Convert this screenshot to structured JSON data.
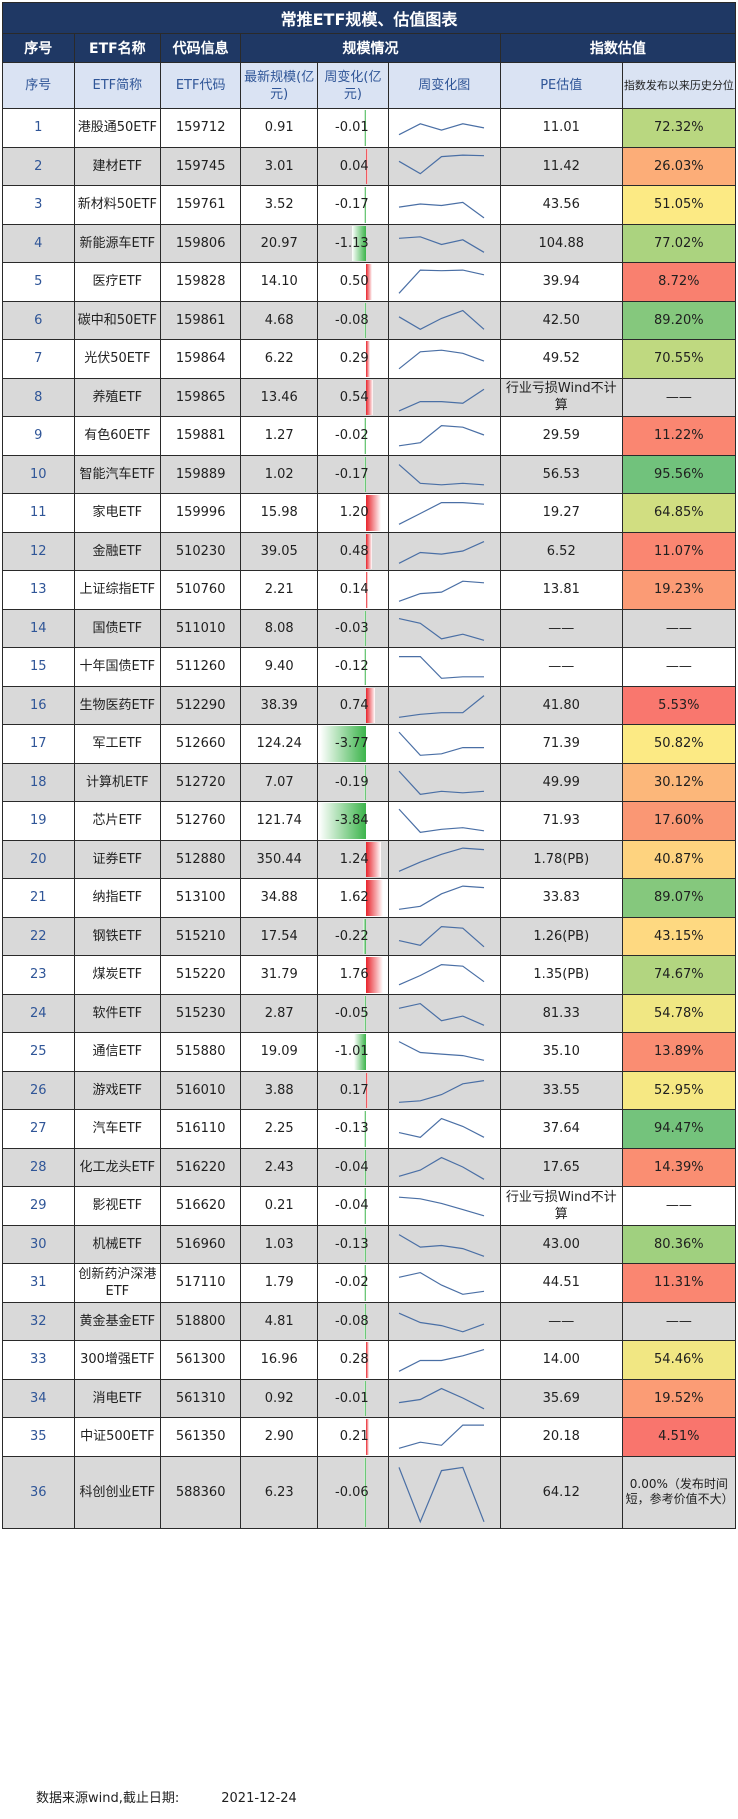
{
  "title": "常推ETF规模、估值图表",
  "group_headers": {
    "seq": "序号",
    "name": "ETF名称",
    "code": "代码信息",
    "scale": "规模情况",
    "valuation": "指数估值"
  },
  "column_headers": {
    "seq": "序号",
    "name": "ETF简称",
    "code": "ETF代码",
    "latest_scale": "最新规模(亿元)",
    "weekly_change": "周变化(亿元)",
    "weekly_chart": "周变化图",
    "pe": "PE估值",
    "percentile": "指数发布以来历史分位"
  },
  "colors": {
    "header_bg": "#1f3864",
    "subheader_bg": "#dae3f3",
    "row_alt_bg": "#d9d9d9",
    "bar_positive": "#e8242c",
    "bar_negative": "#3cb44b",
    "spark_line": "#4a6fa5"
  },
  "rows": [
    {
      "seq": "1",
      "name": "港股通50ETF",
      "code": "159712",
      "scale": "0.91",
      "change": "-0.01",
      "change_value": -0.01,
      "pe": "11.01",
      "pct": "72.32%",
      "pct_value": 72.32,
      "spark": [
        0.7,
        0.35,
        0.55,
        0.35,
        0.48
      ]
    },
    {
      "seq": "2",
      "name": "建材ETF",
      "code": "159745",
      "scale": "3.01",
      "change": "0.04",
      "change_value": 0.04,
      "pe": "11.42",
      "pct": "26.03%",
      "pct_value": 26.03,
      "spark": [
        0.3,
        0.7,
        0.15,
        0.1,
        0.12
      ]
    },
    {
      "seq": "3",
      "name": "新材料50ETF",
      "code": "159761",
      "scale": "3.52",
      "change": "-0.17",
      "change_value": -0.17,
      "pe": "43.56",
      "pct": "51.05%",
      "pct_value": 51.05,
      "spark": [
        0.55,
        0.45,
        0.5,
        0.4,
        0.9
      ]
    },
    {
      "seq": "4",
      "name": "新能源车ETF",
      "code": "159806",
      "scale": "20.97",
      "change": "-1.13",
      "change_value": -1.13,
      "pe": "104.88",
      "pct": "77.02%",
      "pct_value": 77.02,
      "spark": [
        0.3,
        0.25,
        0.5,
        0.35,
        0.75
      ]
    },
    {
      "seq": "5",
      "name": "医疗ETF",
      "code": "159828",
      "scale": "14.10",
      "change": "0.50",
      "change_value": 0.5,
      "pe": "39.94",
      "pct": "8.72%",
      "pct_value": 8.72,
      "spark": [
        0.85,
        0.1,
        0.12,
        0.1,
        0.25
      ]
    },
    {
      "seq": "6",
      "name": "碳中和50ETF",
      "code": "159861",
      "scale": "4.68",
      "change": "-0.08",
      "change_value": -0.08,
      "pe": "42.50",
      "pct": "89.20%",
      "pct_value": 89.2,
      "spark": [
        0.35,
        0.75,
        0.4,
        0.15,
        0.75
      ]
    },
    {
      "seq": "7",
      "name": "光伏50ETF",
      "code": "159864",
      "scale": "6.22",
      "change": "0.29",
      "change_value": 0.29,
      "pe": "49.52",
      "pct": "70.55%",
      "pct_value": 70.55,
      "spark": [
        0.8,
        0.25,
        0.2,
        0.3,
        0.55
      ]
    },
    {
      "seq": "8",
      "name": "养殖ETF",
      "code": "159865",
      "scale": "13.46",
      "change": "0.54",
      "change_value": 0.54,
      "pe": "行业亏损Wind不计算",
      "pct": "——",
      "pct_value": null,
      "spark": [
        0.9,
        0.6,
        0.6,
        0.65,
        0.2
      ]
    },
    {
      "seq": "9",
      "name": "有色60ETF",
      "code": "159881",
      "scale": "1.27",
      "change": "-0.02",
      "change_value": -0.02,
      "pe": "29.59",
      "pct": "11.22%",
      "pct_value": 11.22,
      "spark": [
        0.8,
        0.7,
        0.15,
        0.2,
        0.45
      ]
    },
    {
      "seq": "10",
      "name": "智能汽车ETF",
      "code": "159889",
      "scale": "1.02",
      "change": "-0.17",
      "change_value": -0.17,
      "pe": "56.53",
      "pct": "95.56%",
      "pct_value": 95.56,
      "spark": [
        0.15,
        0.75,
        0.8,
        0.75,
        0.8
      ]
    },
    {
      "seq": "11",
      "name": "家电ETF",
      "code": "159996",
      "scale": "15.98",
      "change": "1.20",
      "change_value": 1.2,
      "pe": "19.27",
      "pct": "64.85%",
      "pct_value": 64.85,
      "spark": [
        0.85,
        0.5,
        0.15,
        0.15,
        0.2
      ]
    },
    {
      "seq": "12",
      "name": "金融ETF",
      "code": "510230",
      "scale": "39.05",
      "change": "0.48",
      "change_value": 0.48,
      "pe": "6.52",
      "pct": "11.07%",
      "pct_value": 11.07,
      "spark": [
        0.85,
        0.5,
        0.55,
        0.45,
        0.15
      ]
    },
    {
      "seq": "13",
      "name": "上证综指ETF",
      "code": "510760",
      "scale": "2.21",
      "change": "0.14",
      "change_value": 0.14,
      "pe": "13.81",
      "pct": "19.23%",
      "pct_value": 19.23,
      "spark": [
        0.85,
        0.6,
        0.55,
        0.2,
        0.25
      ]
    },
    {
      "seq": "14",
      "name": "国债ETF",
      "code": "511010",
      "scale": "8.08",
      "change": "-0.03",
      "change_value": -0.03,
      "pe": "——",
      "pct": "——",
      "pct_value": null,
      "spark": [
        0.15,
        0.3,
        0.8,
        0.65,
        0.85
      ]
    },
    {
      "seq": "15",
      "name": "十年国债ETF",
      "code": "511260",
      "scale": "9.40",
      "change": "-0.12",
      "change_value": -0.12,
      "pe": "——",
      "pct": "——",
      "pct_value": null,
      "spark": [
        0.15,
        0.15,
        0.85,
        0.8,
        0.8
      ]
    },
    {
      "seq": "16",
      "name": "生物医药ETF",
      "code": "512290",
      "scale": "38.39",
      "change": "0.74",
      "change_value": 0.74,
      "pe": "41.80",
      "pct": "5.53%",
      "pct_value": 5.53,
      "spark": [
        0.85,
        0.75,
        0.7,
        0.7,
        0.15
      ]
    },
    {
      "seq": "17",
      "name": "军工ETF",
      "code": "512660",
      "scale": "124.24",
      "change": "-3.77",
      "change_value": -3.77,
      "pe": "71.39",
      "pct": "50.82%",
      "pct_value": 50.82,
      "spark": [
        0.1,
        0.85,
        0.8,
        0.6,
        0.6
      ]
    },
    {
      "seq": "18",
      "name": "计算机ETF",
      "code": "512720",
      "scale": "7.07",
      "change": "-0.19",
      "change_value": -0.19,
      "pe": "49.99",
      "pct": "30.12%",
      "pct_value": 30.12,
      "spark": [
        0.1,
        0.85,
        0.75,
        0.8,
        0.75
      ]
    },
    {
      "seq": "19",
      "name": "芯片ETF",
      "code": "512760",
      "scale": "121.74",
      "change": "-3.84",
      "change_value": -3.84,
      "pe": "71.93",
      "pct": "17.60%",
      "pct_value": 17.6,
      "spark": [
        0.1,
        0.85,
        0.75,
        0.7,
        0.8
      ]
    },
    {
      "seq": "20",
      "name": "证券ETF",
      "code": "512880",
      "scale": "350.44",
      "change": "1.24",
      "change_value": 1.24,
      "pe": "1.78(PB)",
      "pct": "40.87%",
      "pct_value": 40.87,
      "spark": [
        0.85,
        0.55,
        0.3,
        0.1,
        0.15
      ]
    },
    {
      "seq": "21",
      "name": "纳指ETF",
      "code": "513100",
      "scale": "34.88",
      "change": "1.62",
      "change_value": 1.62,
      "pe": "33.83",
      "pct": "89.07%",
      "pct_value": 89.07,
      "spark": [
        0.85,
        0.75,
        0.35,
        0.1,
        0.15
      ]
    },
    {
      "seq": "22",
      "name": "钢铁ETF",
      "code": "515210",
      "scale": "17.54",
      "change": "-0.22",
      "change_value": -0.22,
      "pe": "1.26(PB)",
      "pct": "43.15%",
      "pct_value": 43.15,
      "spark": [
        0.6,
        0.75,
        0.15,
        0.2,
        0.8
      ]
    },
    {
      "seq": "23",
      "name": "煤炭ETF",
      "code": "515220",
      "scale": "31.79",
      "change": "1.76",
      "change_value": 1.76,
      "pe": "1.35(PB)",
      "pct": "74.67%",
      "pct_value": 74.67,
      "spark": [
        0.8,
        0.5,
        0.15,
        0.2,
        0.7
      ]
    },
    {
      "seq": "24",
      "name": "软件ETF",
      "code": "515230",
      "scale": "2.87",
      "change": "-0.05",
      "change_value": -0.05,
      "pe": "81.33",
      "pct": "54.78%",
      "pct_value": 54.78,
      "spark": [
        0.3,
        0.15,
        0.7,
        0.55,
        0.85
      ]
    },
    {
      "seq": "25",
      "name": "通信ETF",
      "code": "515880",
      "scale": "19.09",
      "change": "-1.01",
      "change_value": -1.01,
      "pe": "35.10",
      "pct": "13.89%",
      "pct_value": 13.89,
      "spark": [
        0.15,
        0.5,
        0.55,
        0.6,
        0.75
      ]
    },
    {
      "seq": "26",
      "name": "游戏ETF",
      "code": "516010",
      "scale": "3.88",
      "change": "0.17",
      "change_value": 0.17,
      "pe": "33.55",
      "pct": "52.95%",
      "pct_value": 52.95,
      "spark": [
        0.85,
        0.8,
        0.6,
        0.25,
        0.15
      ]
    },
    {
      "seq": "27",
      "name": "汽车ETF",
      "code": "516110",
      "scale": "2.25",
      "change": "-0.13",
      "change_value": -0.13,
      "pe": "37.64",
      "pct": "94.47%",
      "pct_value": 94.47,
      "spark": [
        0.6,
        0.75,
        0.15,
        0.4,
        0.75
      ]
    },
    {
      "seq": "28",
      "name": "化工龙头ETF",
      "code": "516220",
      "scale": "2.43",
      "change": "-0.04",
      "change_value": -0.04,
      "pe": "17.65",
      "pct": "14.39%",
      "pct_value": 14.39,
      "spark": [
        0.75,
        0.55,
        0.15,
        0.45,
        0.85
      ]
    },
    {
      "seq": "29",
      "name": "影视ETF",
      "code": "516620",
      "scale": "0.21",
      "change": "-0.04",
      "change_value": -0.04,
      "pe": "行业亏损Wind不计算",
      "pct": "——",
      "pct_value": null,
      "spark": [
        0.2,
        0.25,
        0.4,
        0.6,
        0.8
      ]
    },
    {
      "seq": "30",
      "name": "机械ETF",
      "code": "516960",
      "scale": "1.03",
      "change": "-0.13",
      "change_value": -0.13,
      "pe": "43.00",
      "pct": "80.36%",
      "pct_value": 80.36,
      "spark": [
        0.15,
        0.55,
        0.5,
        0.6,
        0.85
      ]
    },
    {
      "seq": "31",
      "name": "创新药沪深港ETF",
      "code": "517110",
      "scale": "1.79",
      "change": "-0.02",
      "change_value": -0.02,
      "pe": "44.51",
      "pct": "11.31%",
      "pct_value": 11.31,
      "spark": [
        0.3,
        0.15,
        0.55,
        0.85,
        0.75
      ]
    },
    {
      "seq": "32",
      "name": "黄金基金ETF",
      "code": "518800",
      "scale": "4.81",
      "change": "-0.08",
      "change_value": -0.08,
      "pe": "——",
      "pct": "——",
      "pct_value": null,
      "spark": [
        0.2,
        0.5,
        0.6,
        0.8,
        0.55
      ]
    },
    {
      "seq": "33",
      "name": "300增强ETF",
      "code": "561300",
      "scale": "16.96",
      "change": "0.28",
      "change_value": 0.28,
      "pe": "14.00",
      "pct": "54.46%",
      "pct_value": 54.46,
      "spark": [
        0.85,
        0.5,
        0.5,
        0.35,
        0.15
      ]
    },
    {
      "seq": "34",
      "name": "消电ETF",
      "code": "561310",
      "scale": "0.92",
      "change": "-0.01",
      "change_value": -0.01,
      "pe": "35.69",
      "pct": "19.52%",
      "pct_value": 19.52,
      "spark": [
        0.6,
        0.5,
        0.15,
        0.45,
        0.8
      ]
    },
    {
      "seq": "35",
      "name": "中证500ETF",
      "code": "561350",
      "scale": "2.90",
      "change": "0.21",
      "change_value": 0.21,
      "pe": "20.18",
      "pct": "4.51%",
      "pct_value": 4.51,
      "spark": [
        0.85,
        0.65,
        0.75,
        0.1,
        0.1
      ]
    },
    {
      "seq": "36",
      "name": "科创创业ETF",
      "code": "588360",
      "scale": "6.23",
      "change": "-0.06",
      "change_value": -0.06,
      "pe": "64.12",
      "pct": "0.00%（发布时间短，参考价值不大）",
      "pct_value": 0,
      "spark": [
        0.1,
        0.95,
        0.15,
        0.1,
        0.95
      ]
    }
  ],
  "source": {
    "label": "数据来源wind,截止日期:",
    "date": "2021-12-24"
  }
}
